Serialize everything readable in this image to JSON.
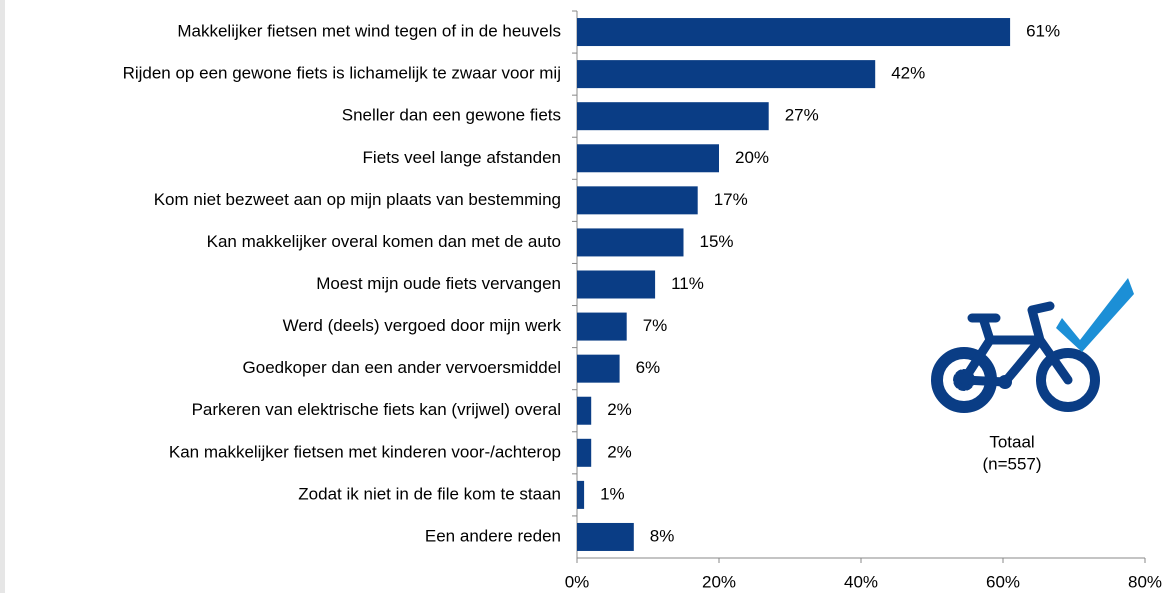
{
  "chart_data": {
    "type": "bar",
    "orientation": "horizontal",
    "categories": [
      "Makkelijker fietsen met wind tegen of in de heuvels",
      "Rijden op een gewone fiets is lichamelijk te zwaar voor mij",
      "Sneller dan een gewone fiets",
      "Fiets veel lange afstanden",
      "Kom niet bezweet aan op mijn plaats van bestemming",
      "Kan makkelijker overal komen dan met de auto",
      "Moest mijn oude fiets vervangen",
      "Werd (deels) vergoed door mijn werk",
      "Goedkoper dan een ander vervoersmiddel",
      "Parkeren van elektrische fiets kan (vrijwel) overal",
      "Kan makkelijker fietsen met kinderen voor-/achterop",
      "Zodat ik niet in de file kom te staan",
      "Een andere reden"
    ],
    "values": [
      61,
      42,
      27,
      20,
      17,
      15,
      11,
      7,
      6,
      2,
      2,
      1,
      8
    ],
    "value_labels": [
      "61%",
      "42%",
      "27%",
      "20%",
      "17%",
      "15%",
      "11%",
      "7%",
      "6%",
      "2%",
      "2%",
      "1%",
      "8%"
    ],
    "color": "#0a3d85",
    "xlim": [
      0,
      80
    ],
    "xticks": [
      {
        "value": 0,
        "label": "0%"
      },
      {
        "value": 20,
        "label": "20%"
      },
      {
        "value": 40,
        "label": "40%"
      },
      {
        "value": 60,
        "label": "60%"
      },
      {
        "value": 80,
        "label": "80%"
      }
    ],
    "annotations": [
      "Totaal",
      "(n=557)"
    ]
  }
}
